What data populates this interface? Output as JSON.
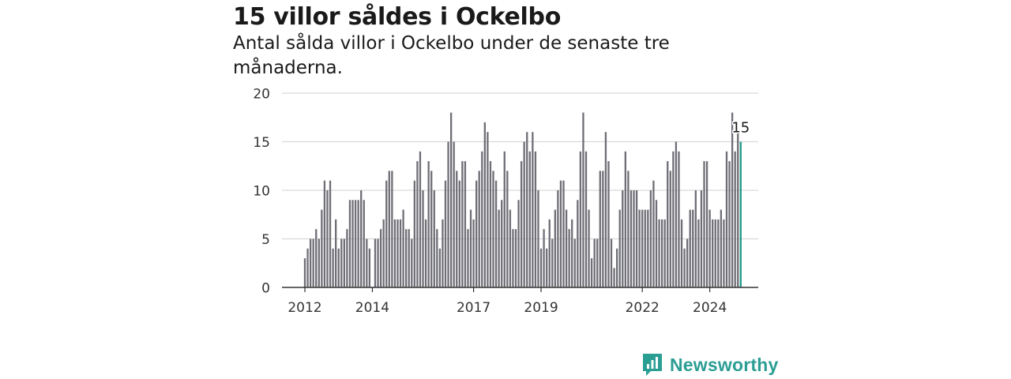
{
  "header": {
    "title": "15 villor såldes i Ockelbo",
    "subtitle": "Antal sålda villor i Ockelbo under de senaste tre månaderna."
  },
  "brand": {
    "name": "Newsworthy",
    "logo_icon": "newsworthy-bar-chart-icon",
    "color": "#2b9e94"
  },
  "colors": {
    "bar": "#6e6e76",
    "highlight": "#1f9a8a",
    "grid": "#d9d9d9",
    "axis": "#333333"
  },
  "chart_data": {
    "type": "bar",
    "grid": true,
    "ylim": [
      0,
      20
    ],
    "yticks": [
      0,
      5,
      10,
      15,
      20
    ],
    "xticks": [
      "2012",
      "2014",
      "2017",
      "2019",
      "2022",
      "2024"
    ],
    "annotation": {
      "text": "15",
      "value": 15,
      "target": "last-bar"
    },
    "values": [
      3,
      4,
      5,
      5,
      6,
      5,
      8,
      11,
      10,
      11,
      4,
      7,
      4,
      5,
      5,
      6,
      9,
      9,
      9,
      9,
      10,
      9,
      5,
      4,
      null,
      5,
      5,
      6,
      7,
      11,
      12,
      12,
      7,
      7,
      7,
      8,
      6,
      6,
      5,
      11,
      13,
      14,
      10,
      7,
      13,
      12,
      10,
      6,
      4,
      7,
      11,
      15,
      18,
      15,
      12,
      11,
      13,
      13,
      6,
      8,
      7,
      11,
      12,
      14,
      17,
      16,
      13,
      12,
      11,
      8,
      9,
      14,
      12,
      8,
      6,
      6,
      9,
      13,
      15,
      16,
      14,
      16,
      14,
      10,
      4,
      6,
      4,
      7,
      5,
      8,
      10,
      11,
      11,
      8,
      6,
      7,
      5,
      9,
      14,
      18,
      14,
      8,
      3,
      5,
      5,
      12,
      12,
      16,
      13,
      5,
      2,
      4,
      8,
      10,
      14,
      12,
      10,
      10,
      10,
      8,
      8,
      8,
      8,
      10,
      11,
      9,
      7,
      7,
      7,
      13,
      12,
      14,
      15,
      14,
      7,
      4,
      5,
      8,
      8,
      10,
      7,
      10,
      13,
      13,
      8,
      7,
      7,
      7,
      8,
      7,
      14,
      13,
      18,
      14,
      16,
      15
    ],
    "highlight_index": 155
  }
}
